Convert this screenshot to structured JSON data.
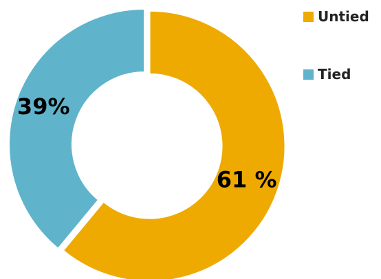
{
  "chart_data": {
    "type": "pie",
    "variant": "donut",
    "categories": [
      "Untied",
      "Tied"
    ],
    "values": [
      61,
      39
    ],
    "data_labels": [
      "61 %",
      "39%"
    ],
    "colors": [
      "#EEAA00",
      "#5FB4CB"
    ],
    "title": "",
    "legend": {
      "placement": "right",
      "entries": [
        {
          "label": "Untied",
          "color": "#EEAA00"
        },
        {
          "label": "Tied",
          "color": "#5FB4CB"
        }
      ]
    },
    "exploded_slices": [
      "Untied"
    ]
  }
}
